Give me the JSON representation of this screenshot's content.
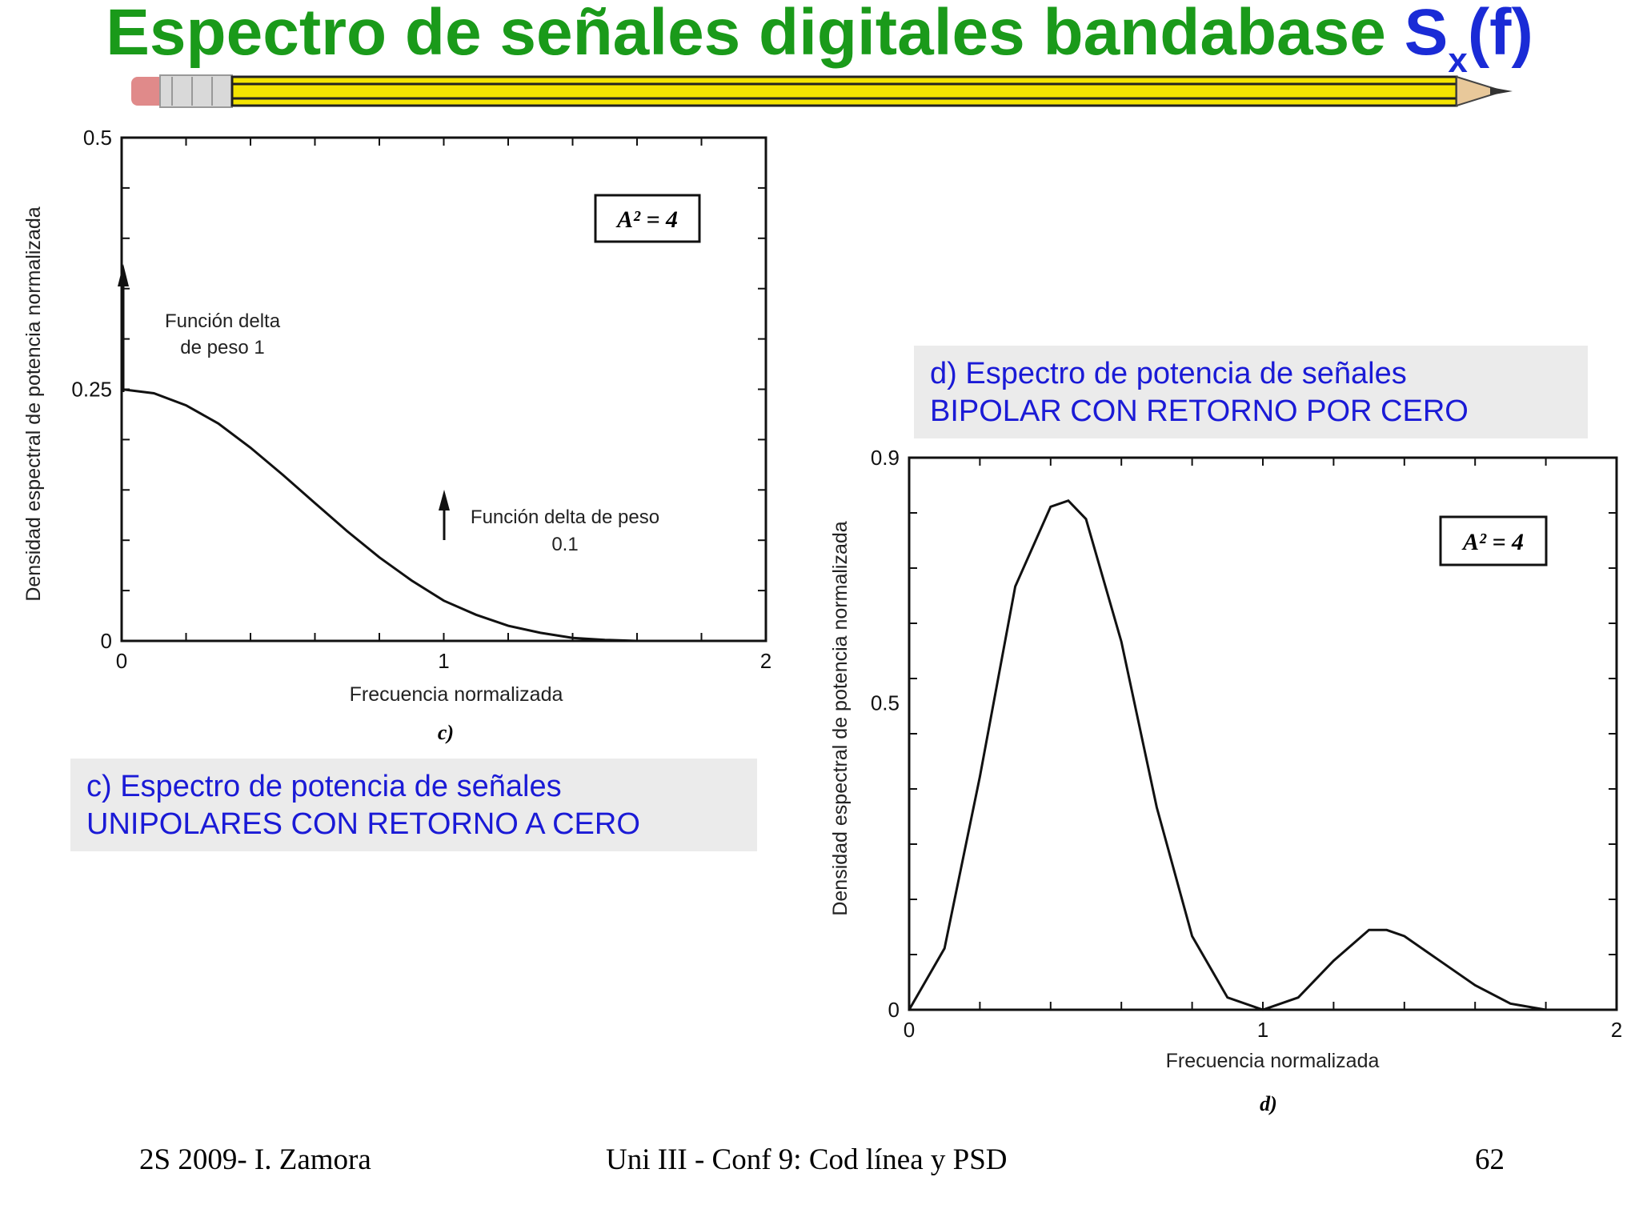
{
  "slide": {
    "title_main": "Espectro de señales digitales bandabase ",
    "title_symbol": "S",
    "title_sub": "x",
    "title_tail": "(f)",
    "colors": {
      "title": "#1a9a1a",
      "symbol": "#1a2bd6",
      "caption_text": "#1a1ad6",
      "caption_bg": "#ebebeb"
    }
  },
  "captions": {
    "c_line1": "c) Espectro de potencia de señales",
    "c_line2": "UNIPOLARES CON RETORNO A CERO",
    "d_line1": "d) Espectro de potencia de señales",
    "d_line2": "BIPOLAR CON RETORNO POR CERO"
  },
  "footer": {
    "left": "2S 2009- I. Zamora",
    "center": "Uni III - Conf 9: Cod línea y PSD",
    "right": "62"
  },
  "chart_data": [
    {
      "type": "line",
      "ylabel": "Densidad espectral de potencia normalizada",
      "xlabel": "Frecuencia normalizada",
      "sublabel": "c)",
      "box_label": "A² = 4",
      "xlim": [
        0,
        2
      ],
      "ylim": [
        0,
        0.5
      ],
      "xticks": [
        "0",
        "1",
        "2"
      ],
      "yticks": [
        "0",
        "0.25",
        "0.5"
      ],
      "x": [
        0,
        0.1,
        0.2,
        0.3,
        0.4,
        0.5,
        0.6,
        0.7,
        0.8,
        0.9,
        1.0,
        1.1,
        1.2,
        1.3,
        1.4,
        1.5,
        1.6,
        1.7,
        1.8,
        1.9,
        2.0
      ],
      "y": [
        0.25,
        0.246,
        0.234,
        0.216,
        0.192,
        0.165,
        0.137,
        0.109,
        0.083,
        0.06,
        0.04,
        0.026,
        0.015,
        0.008,
        0.003,
        0.001,
        0.0,
        0.0,
        0.0,
        0.0,
        0.0
      ],
      "impulses": [
        {
          "x": 0,
          "label_line1": "Función delta",
          "label_line2": "de peso 1"
        },
        {
          "x": 1,
          "label_line1": "Función delta de peso",
          "label_line2": "0.1"
        }
      ]
    },
    {
      "type": "line",
      "ylabel": "Densidad espectral de potencia normalizada",
      "xlabel": "Frecuencia normalizada",
      "sublabel": "d)",
      "box_label": "A² = 4",
      "xlim": [
        0,
        2
      ],
      "ylim": [
        0,
        0.9
      ],
      "xticks": [
        "0",
        "1",
        "2"
      ],
      "yticks": [
        "0",
        "0.5",
        "0.9"
      ],
      "x": [
        0,
        0.1,
        0.2,
        0.3,
        0.4,
        0.45,
        0.5,
        0.6,
        0.7,
        0.8,
        0.9,
        1.0,
        1.1,
        1.2,
        1.3,
        1.35,
        1.4,
        1.5,
        1.6,
        1.7,
        1.8,
        1.9,
        2.0
      ],
      "y": [
        0,
        0.1,
        0.38,
        0.69,
        0.82,
        0.83,
        0.8,
        0.6,
        0.33,
        0.12,
        0.02,
        0.0,
        0.02,
        0.08,
        0.13,
        0.13,
        0.12,
        0.08,
        0.04,
        0.01,
        0.0,
        0.0,
        0.0
      ]
    }
  ]
}
